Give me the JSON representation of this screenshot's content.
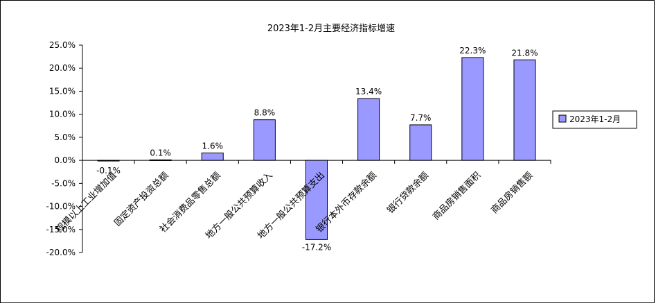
{
  "chart_data": {
    "type": "bar",
    "title": "2023年1-2月主要经济指标增速",
    "categories": [
      "规模以上工业增加值",
      "固定资产投资总额",
      "社会消费品零售总额",
      "地方一般公共预算收入",
      "地方一般公共预算支出",
      "银行本外币存款余额",
      "银行贷款余额",
      "商品房销售面积",
      "商品房销售额"
    ],
    "series": [
      {
        "name": "2023年1-2月",
        "values": [
          -0.1,
          0.1,
          1.6,
          8.8,
          -17.2,
          13.4,
          7.7,
          22.3,
          21.8
        ],
        "value_labels": [
          "-0.1%",
          "0.1%",
          "1.6%",
          "8.8%",
          "-17.2%",
          "13.4%",
          "7.7%",
          "22.3%",
          "21.8%"
        ],
        "color": "#9999ff"
      }
    ],
    "y_ticks": [
      25,
      20,
      15,
      10,
      5,
      0,
      -5,
      -10,
      -15,
      -20
    ],
    "y_tick_labels": [
      "25.0%",
      "20.0%",
      "15.0%",
      "10.0%",
      "5.0%",
      "0.0%",
      "-5.0%",
      "-10.0%",
      "-15.0%",
      "-20.0%"
    ],
    "ylim": [
      -20,
      25
    ],
    "grid": false,
    "legend_position": "right"
  }
}
